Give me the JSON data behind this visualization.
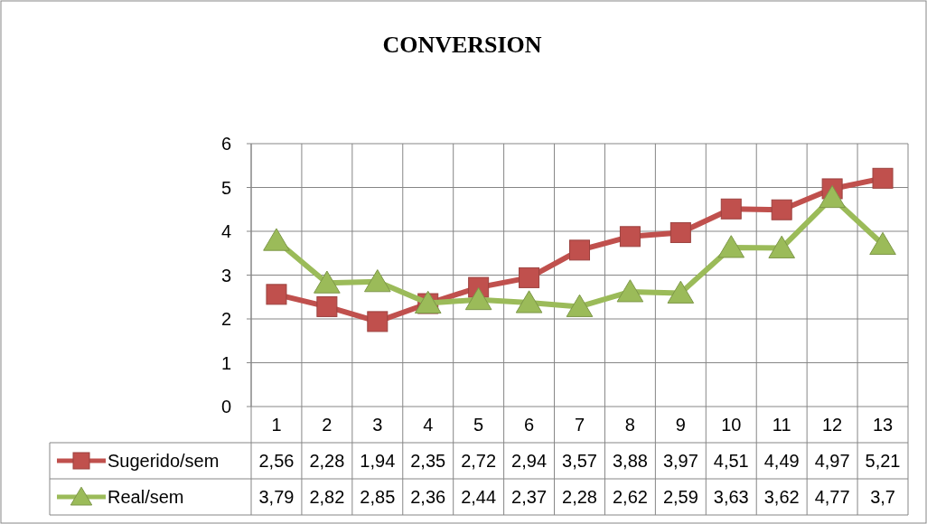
{
  "chart_data": {
    "type": "line",
    "title": "CONVERSION",
    "categories": [
      "1",
      "2",
      "3",
      "4",
      "5",
      "6",
      "7",
      "8",
      "9",
      "10",
      "11",
      "12",
      "13"
    ],
    "series": [
      {
        "name": "Sugerido/sem",
        "color": "#c0504d",
        "marker": "square",
        "values": [
          2.56,
          2.28,
          1.94,
          2.35,
          2.72,
          2.94,
          3.57,
          3.88,
          3.97,
          4.51,
          4.49,
          4.97,
          5.21
        ],
        "value_labels": [
          "2,56",
          "2,28",
          "1,94",
          "2,35",
          "2,72",
          "2,94",
          "3,57",
          "3,88",
          "3,97",
          "4,51",
          "4,49",
          "4,97",
          "5,21"
        ]
      },
      {
        "name": "Real/sem",
        "color": "#9bbb59",
        "marker": "triangle",
        "values": [
          3.79,
          2.82,
          2.85,
          2.36,
          2.44,
          2.37,
          2.28,
          2.62,
          2.59,
          3.63,
          3.62,
          4.77,
          3.7
        ],
        "value_labels": [
          "3,79",
          "2,82",
          "2,85",
          "2,36",
          "2,44",
          "2,37",
          "2,28",
          "2,62",
          "2,59",
          "3,63",
          "3,62",
          "4,77",
          "3,7"
        ]
      }
    ],
    "ylim": [
      0,
      6
    ],
    "yticks": [
      0,
      1,
      2,
      3,
      4,
      5,
      6
    ],
    "grid": "y",
    "legend": "bottom left"
  }
}
